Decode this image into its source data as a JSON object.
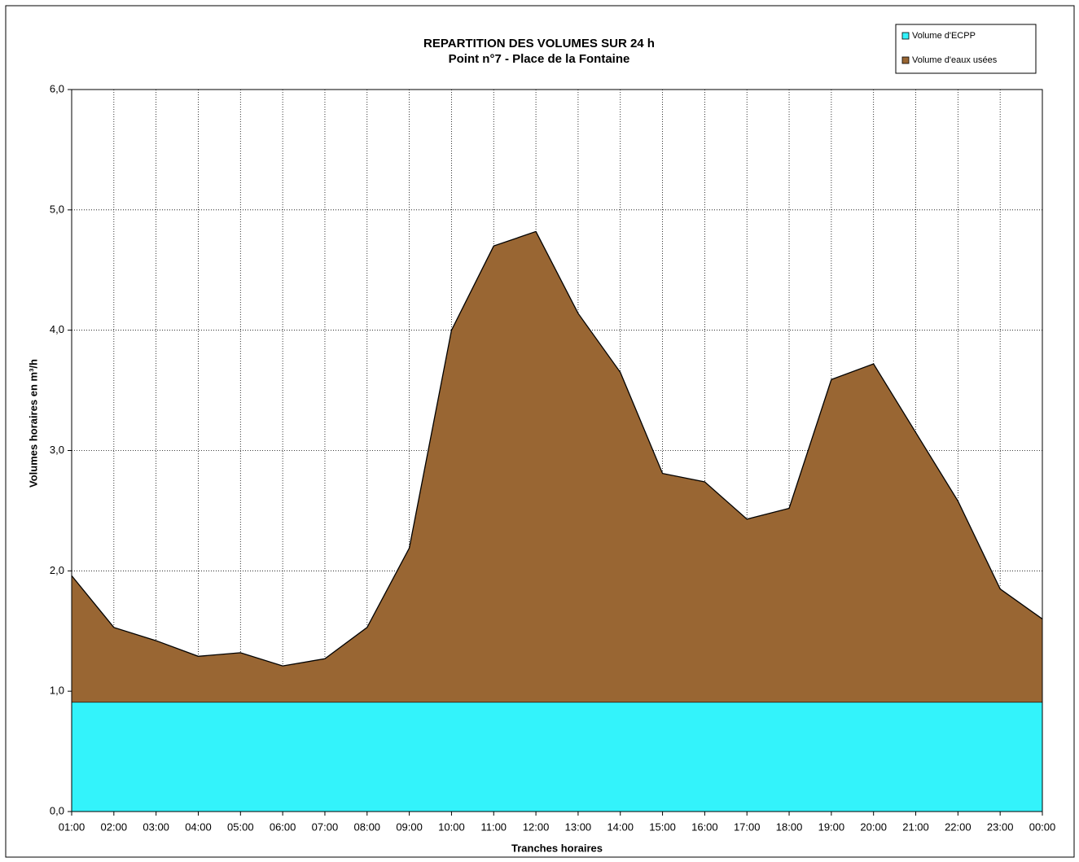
{
  "chart_data": {
    "type": "stacked_area",
    "title": "REPARTITION DES VOLUMES SUR 24 h",
    "subtitle": "Point n°7 - Place de la Fontaine",
    "x_label": "Tranches horaires",
    "y_label": "Volumes horaires en m³/h",
    "categories": [
      "01:00",
      "02:00",
      "03:00",
      "04:00",
      "05:00",
      "06:00",
      "07:00",
      "08:00",
      "09:00",
      "10:00",
      "11:00",
      "12:00",
      "13:00",
      "14:00",
      "15:00",
      "16:00",
      "17:00",
      "18:00",
      "19:00",
      "20:00",
      "21:00",
      "22:00",
      "23:00",
      "00:00"
    ],
    "series": [
      {
        "name": "Volume d'ECPP",
        "color": "#33f3fb",
        "values": [
          0.91,
          0.91,
          0.91,
          0.91,
          0.91,
          0.91,
          0.91,
          0.91,
          0.91,
          0.91,
          0.91,
          0.91,
          0.91,
          0.91,
          0.91,
          0.91,
          0.91,
          0.91,
          0.91,
          0.91,
          0.91,
          0.91,
          0.91,
          0.91
        ]
      },
      {
        "name": "Volume d'eaux usées",
        "color": "#996633",
        "values": [
          1.05,
          0.62,
          0.51,
          0.38,
          0.41,
          0.3,
          0.36,
          0.62,
          1.28,
          3.09,
          3.79,
          3.91,
          3.23,
          2.74,
          1.9,
          1.83,
          1.52,
          1.61,
          2.68,
          2.81,
          2.24,
          1.67,
          0.94,
          0.69
        ]
      }
    ],
    "ylim": [
      0,
      6
    ],
    "yticks": [
      {
        "value": 0,
        "label": "0,0"
      },
      {
        "value": 1,
        "label": "1,0"
      },
      {
        "value": 2,
        "label": "2,0"
      },
      {
        "value": 3,
        "label": "3,0"
      },
      {
        "value": 4,
        "label": "4,0"
      },
      {
        "value": 5,
        "label": "5,0"
      },
      {
        "value": 6,
        "label": "6,0"
      }
    ],
    "grid": true,
    "legend": "top-right"
  }
}
